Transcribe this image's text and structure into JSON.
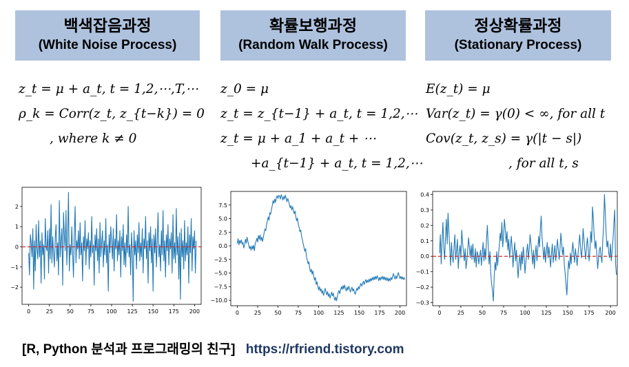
{
  "panels": [
    {
      "title_ko": "백색잡음과정",
      "title_en": "(White Noise Process)",
      "formulas": [
        "z_t = μ + a_t, t = 1,2,⋯,T,⋯",
        "ρ_k = Corr(z_t, z_{t−k}) = 0",
        ", where k ≠ 0"
      ]
    },
    {
      "title_ko": "확률보행과정",
      "title_en": "(Random Walk Process)",
      "formulas": [
        "z_0 = μ",
        "z_t = z_{t−1} + a_t, t = 1,2,⋯",
        "z_t = μ + a_1 + a_t + ⋯",
        "+a_{t−1} + a_t, t = 1,2,⋯"
      ]
    },
    {
      "title_ko": "정상확률과정",
      "title_en": "(Stationary Process)",
      "formulas": [
        "E(z_t) = μ",
        "Var(z_t) = γ(0) < ∞, for all t",
        "Cov(z_t, z_s) = γ(|t − s|)",
        ", for all t, s"
      ]
    }
  ],
  "footer": {
    "text": "[R, Python 분석과 프로그래밍의 친구]",
    "url": "https://rfriend.tistory.com"
  },
  "colors": {
    "header_bg": "#aec2de",
    "line": "#1f77b4",
    "mean_line": "#d62728",
    "url": "#1f3864"
  },
  "chart_data": [
    {
      "type": "line",
      "xticks": [
        0,
        25,
        50,
        75,
        100,
        125,
        150,
        175,
        200
      ],
      "yticks": [
        -2,
        -1,
        0,
        1,
        2
      ],
      "xlim": [
        -8,
        208
      ],
      "ylim": [
        -2.85,
        2.95
      ],
      "hline": 0,
      "series": [
        {
          "values": [
            -0.3,
            -1.4,
            0.6,
            0.2,
            -0.5,
            0.9,
            -2.1,
            0.3,
            -1.2,
            1.1,
            -0.1,
            -0.6,
            1.3,
            -0.5,
            0.3,
            -1.8,
            0.7,
            -0.4,
            0.1,
            -1.6,
            1.4,
            0.0,
            -0.2,
            0.8,
            -1.3,
            0.9,
            -0.6,
            2.1,
            -0.8,
            0.5,
            -0.3,
            -1.0,
            0.4,
            1.1,
            -0.7,
            0.2,
            -1.4,
            2.3,
            -0.5,
            0.3,
            0.9,
            -1.9,
            1.7,
            0.6,
            -0.2,
            1.8,
            -0.9,
            0.4,
            2.7,
            -1.2,
            0.1,
            -0.4,
            1.0,
            -0.3,
            -1.5,
            0.6,
            2.0,
            -0.8,
            0.3,
            -0.1,
            0.8,
            -0.6,
            1.2,
            -0.4,
            0.2,
            -1.7,
            0.5,
            -0.2,
            1.3,
            -0.9,
            0.4,
            -0.1,
            0.7,
            -1.1,
            0.3,
            -0.5,
            1.5,
            -0.3,
            0.1,
            -1.9,
            0.6,
            -0.2,
            0.9,
            -0.7,
            0.4,
            -1.3,
            1.2,
            -0.5,
            0.2,
            0.8,
            -1.0,
            0.3,
            -0.4,
            1.4,
            -0.8,
            0.1,
            -2.2,
            0.6,
            -0.3,
            1.0,
            0.2,
            -0.6,
            0.9,
            -1.2,
            0.4,
            -0.1,
            1.6,
            -0.7,
            0.3,
            -0.4,
            0.8,
            -1.5,
            0.5,
            -0.2,
            1.1,
            -0.9,
            0.2,
            -1.0,
            0.6,
            -0.3,
            2.0,
            -0.5,
            0.1,
            -1.4,
            0.7,
            -0.2,
            -2.7,
            0.8,
            -0.4,
            0.3,
            -1.1,
            0.6,
            -0.3,
            1.2,
            -0.7,
            0.2,
            -0.5,
            0.9,
            -1.3,
            0.4,
            -0.1,
            1.5,
            -0.6,
            0.3,
            -1.8,
            0.7,
            -0.2,
            1.0,
            -0.8,
            0.4,
            -2.2,
            0.6,
            -0.3,
            0.9,
            -1.0,
            0.2,
            1.7,
            -0.5,
            0.1,
            -1.2,
            0.8,
            -0.4,
            1.8,
            -0.7,
            0.3,
            -1.5,
            0.6,
            -0.2,
            1.1,
            -0.9,
            0.4,
            -0.1,
            0.7,
            -1.3,
            1.6,
            -0.6,
            0.2,
            -0.8,
            1.9,
            -0.4,
            0.5,
            -1.6,
            0.7,
            -2.6,
            0.9,
            -0.5,
            0.3,
            -1.1,
            1.3,
            -0.7,
            0.2,
            -0.4,
            1.0,
            -1.8,
            0.6,
            -0.3,
            1.4,
            -1.2,
            0.5,
            -0.1,
            0.8,
            -1.3,
            0.3
          ]
        }
      ]
    },
    {
      "type": "line",
      "xticks": [
        0,
        25,
        50,
        75,
        100,
        125,
        150,
        175,
        200
      ],
      "yticks": [
        7.5,
        5.0,
        2.5,
        0.0,
        -2.5,
        -5.0,
        -7.5,
        -10.0
      ],
      "ytick_labels": [
        "7.5",
        "5.0",
        "2.5",
        "0.0",
        "−2.5",
        "−5.0",
        "−7.5",
        "−10.0"
      ],
      "xlim": [
        -8,
        208
      ],
      "ylim": [
        -11,
        10
      ],
      "series": [
        {
          "values": [
            0.4,
            1.3,
            0.2,
            1.0,
            0.5,
            1.1,
            0.3,
            0.6,
            -0.4,
            0.2,
            1.2,
            0.5,
            1.6,
            0.8,
            0.2,
            -0.5,
            -0.1,
            -0.8,
            0.0,
            -0.6,
            0.1,
            -0.9,
            0.4,
            0.8,
            1.4,
            0.7,
            1.9,
            1.2,
            2.0,
            1.0,
            1.6,
            0.8,
            1.5,
            2.4,
            3.1,
            2.8,
            3.9,
            4.6,
            5.3,
            4.7,
            6.1,
            5.8,
            6.7,
            7.4,
            8.3,
            7.8,
            8.6,
            8.0,
            8.9,
            9.2,
            8.7,
            9.3,
            9.1,
            8.6,
            9.4,
            9.0,
            8.4,
            9.1,
            8.6,
            9.3,
            8.8,
            8.1,
            8.7,
            8.3,
            7.6,
            7.0,
            7.4,
            6.6,
            7.2,
            6.5,
            5.9,
            6.4,
            5.3,
            4.6,
            5.1,
            4.0,
            3.4,
            2.6,
            2.9,
            1.8,
            1.1,
            0.4,
            -0.3,
            -1.0,
            -0.5,
            -1.9,
            -2.6,
            -3.3,
            -2.9,
            -4.1,
            -4.8,
            -4.3,
            -5.2,
            -4.6,
            -5.6,
            -6.3,
            -5.8,
            -7.1,
            -6.6,
            -7.4,
            -8.1,
            -7.5,
            -8.3,
            -7.9,
            -8.7,
            -8.2,
            -9.1,
            -8.6,
            -7.8,
            -8.4,
            -9.0,
            -8.4,
            -9.3,
            -8.8,
            -9.6,
            -9.1,
            -8.5,
            -9.2,
            -8.7,
            -9.5,
            -10.0,
            -9.4,
            -10.1,
            -9.3,
            -8.6,
            -8.2,
            -8.8,
            -8.1,
            -7.5,
            -8.0,
            -7.3,
            -7.9,
            -7.2,
            -7.8,
            -8.3,
            -7.6,
            -8.1,
            -7.4,
            -7.9,
            -8.5,
            -8.0,
            -7.6,
            -8.3,
            -7.9,
            -8.5,
            -8.9,
            -8.3,
            -7.8,
            -8.2,
            -7.5,
            -7.9,
            -7.3,
            -6.9,
            -7.4,
            -7.0,
            -6.5,
            -7.1,
            -6.6,
            -6.2,
            -6.8,
            -6.3,
            -6.7,
            -6.1,
            -6.6,
            -6.0,
            -6.4,
            -5.8,
            -6.3,
            -5.7,
            -6.2,
            -5.6,
            -6.1,
            -5.5,
            -5.9,
            -6.4,
            -5.8,
            -6.3,
            -5.7,
            -6.1,
            -5.6,
            -6.2,
            -5.7,
            -6.3,
            -5.8,
            -6.4,
            -5.9,
            -6.5,
            -6.0,
            -6.4,
            -5.8,
            -6.2,
            -5.6,
            -5.1,
            -5.7,
            -6.1,
            -5.5,
            -6.0,
            -5.4,
            -4.9,
            -5.5,
            -6.0,
            -5.6,
            -6.1,
            -5.7,
            -6.2,
            -5.8,
            -6.2
          ]
        }
      ]
    },
    {
      "type": "line",
      "xticks": [
        0,
        25,
        50,
        75,
        100,
        125,
        150,
        175,
        200
      ],
      "yticks": [
        0.4,
        0.3,
        0.2,
        0.1,
        0.0,
        -0.1,
        -0.2,
        -0.3
      ],
      "ytick_labels": [
        "0.4",
        "0.3",
        "0.2",
        "0.1",
        "0.0",
        "−0.1",
        "−0.2",
        "−0.3"
      ],
      "xlim": [
        -8,
        208
      ],
      "ylim": [
        -0.32,
        0.42
      ],
      "hline": 0,
      "series": [
        {
          "values": [
            0.02,
            0.14,
            -0.05,
            0.1,
            0.22,
            0.06,
            -0.02,
            0.12,
            0.24,
            0.08,
            0.28,
            0.16,
            0.05,
            -0.06,
            0.09,
            0.0,
            -0.04,
            0.06,
            0.14,
            -0.02,
            0.04,
            0.11,
            -0.08,
            0.02,
            0.07,
            -0.01,
            0.17,
            0.09,
            0.03,
            -0.03,
            0.05,
            -0.08,
            -0.03,
            0.04,
            0.12,
            0.06,
            -0.01,
            0.07,
            -0.02,
            0.08,
            0.0,
            -0.04,
            0.05,
            -0.07,
            0.03,
            0.01,
            -0.05,
            0.0,
            0.04,
            -0.06,
            0.02,
            0.09,
            -0.03,
            0.05,
            -0.02,
            0.11,
            0.2,
            0.07,
            -0.05,
            0.03,
            -0.11,
            -0.18,
            -0.22,
            -0.29,
            -0.13,
            -0.04,
            -0.09,
            0.03,
            -0.06,
            0.01,
            0.07,
            0.15,
            0.1,
            0.22,
            0.06,
            0.14,
            0.24,
            0.17,
            0.09,
            0.16,
            0.04,
            0.11,
            -0.01,
            0.06,
            0.13,
            0.05,
            -0.07,
            0.02,
            0.09,
            -0.03,
            0.04,
            -0.06,
            -0.14,
            -0.04,
            0.01,
            -0.09,
            0.03,
            -0.05,
            0.06,
            0.0,
            -0.11,
            -0.04,
            0.03,
            0.08,
            -0.02,
            0.05,
            0.14,
            0.08,
            0.02,
            -0.05,
            0.04,
            -0.08,
            0.01,
            0.07,
            -0.03,
            0.05,
            0.13,
            0.06,
            0.18,
            0.26,
            0.12,
            0.05,
            -0.02,
            0.06,
            -0.04,
            0.03,
            0.09,
            -0.01,
            0.06,
            0.0,
            -0.07,
            0.02,
            0.08,
            -0.04,
            0.02,
            0.07,
            -0.03,
            0.04,
            0.11,
            0.04,
            -0.02,
            0.05,
            0.15,
            0.08,
            0.01,
            0.06,
            -0.05,
            -0.11,
            -0.18,
            -0.25,
            -0.13,
            -0.03,
            -0.08,
            0.02,
            -0.05,
            0.03,
            0.09,
            0.02,
            -0.04,
            0.05,
            0.0,
            -0.06,
            0.01,
            0.07,
            0.14,
            0.06,
            -0.01,
            0.05,
            0.18,
            0.11,
            0.04,
            -0.02,
            0.06,
            0.12,
            0.05,
            -0.03,
            0.04,
            0.16,
            0.09,
            0.32,
            0.24,
            0.13,
            0.05,
            0.1,
            0.02,
            -0.08,
            -0.02,
            0.04,
            0.06,
            0.0,
            -0.04,
            0.1,
            0.2,
            0.4,
            0.28,
            0.14,
            0.06,
            0.1,
            0.02,
            -0.01,
            0.08,
            -0.03,
            0.04,
            0.11,
            0.21,
            0.3,
            -0.05,
            -0.12
          ]
        }
      ]
    }
  ]
}
